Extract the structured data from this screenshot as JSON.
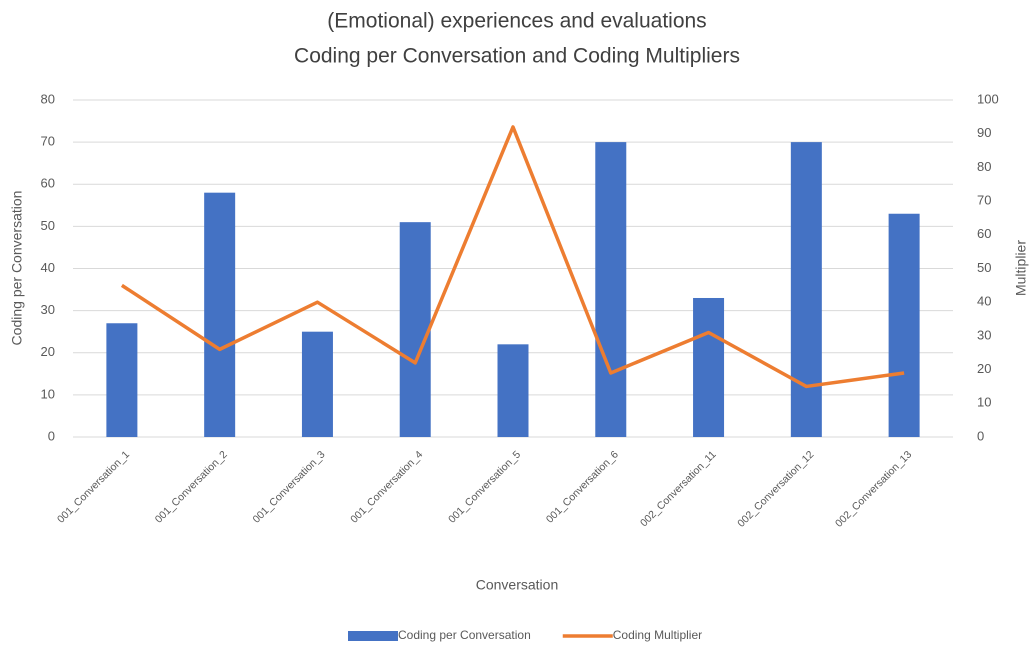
{
  "chart_data": {
    "type": "bar-line",
    "title": "(Emotional) experiences and evaluations",
    "subtitle": "Coding per Conversation and Coding Multipliers",
    "x_label": "Conversation",
    "y_label": "Coding per Conversation",
    "y2_label": "Multiplier",
    "categories": [
      "001_Conversation_1",
      "001_Conversation_2",
      "001_Conversation_3",
      "001_Conversation_4",
      "001_Conversation_5",
      "001_Conversation_6",
      "002_Conversation_11",
      "002_Conversation_12",
      "002_Conversation_13"
    ],
    "series": [
      {
        "name": "Coding per Conversation",
        "type": "bar",
        "color": "#4472c4",
        "values": [
          27,
          58,
          25,
          51,
          22,
          70,
          33,
          70,
          53
        ]
      },
      {
        "name": "Coding Multiplier",
        "type": "line",
        "color": "#ed7d31",
        "axis": "y2",
        "values": [
          45,
          26,
          40,
          22,
          92,
          19,
          31,
          15,
          19
        ]
      }
    ],
    "ylim": [
      0,
      80
    ],
    "yticks": [
      0,
      10,
      20,
      30,
      40,
      50,
      60,
      70,
      80
    ],
    "y2lim": [
      0,
      100
    ],
    "y2ticks": [
      0,
      10,
      20,
      30,
      40,
      50,
      60,
      70,
      80,
      90,
      100
    ],
    "grid": true,
    "legend": "bottom"
  }
}
